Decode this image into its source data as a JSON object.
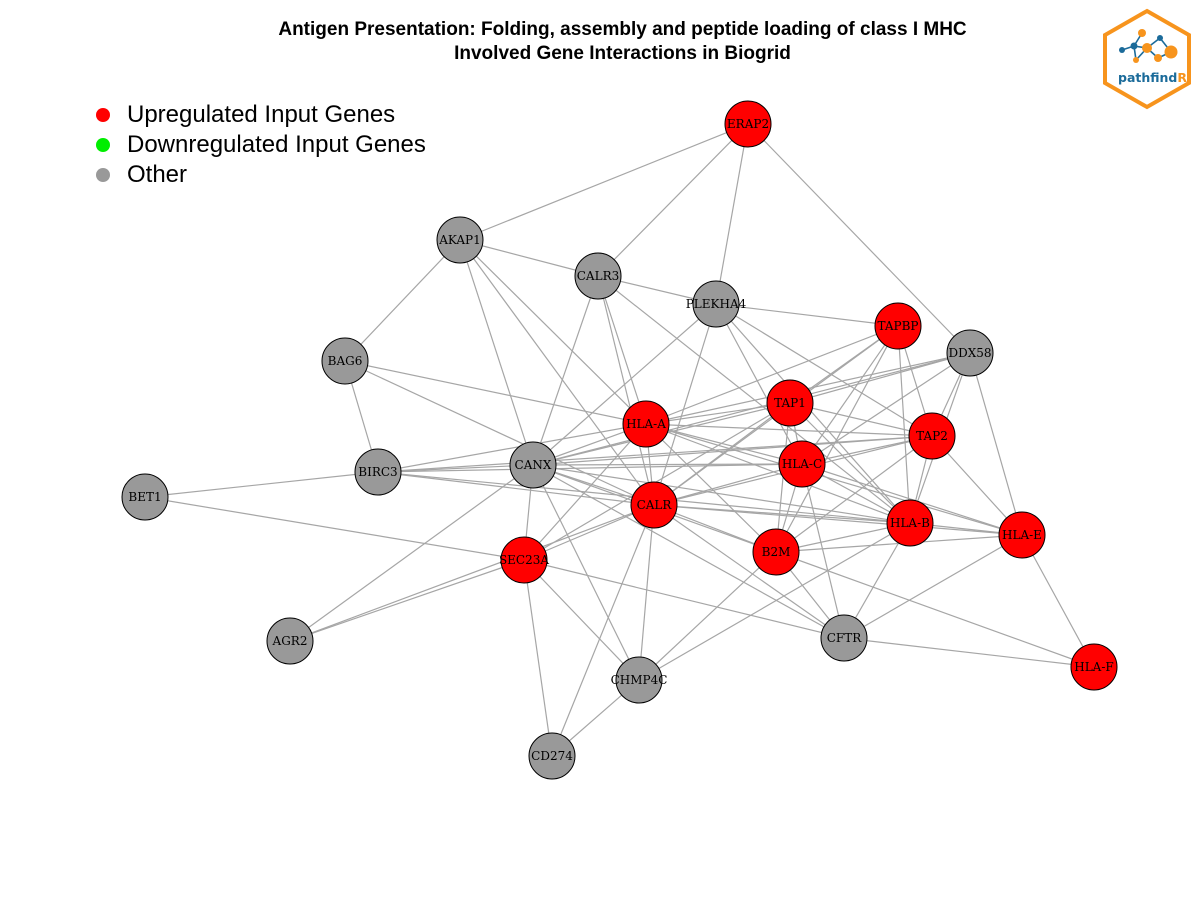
{
  "title": {
    "line1": "Antigen Presentation: Folding, assembly and peptide loading of class I MHC",
    "line2": "Involved Gene Interactions in Biogrid"
  },
  "legend": [
    {
      "label": "Upregulated Input Genes",
      "color": "#ff0000"
    },
    {
      "label": "Downregulated Input Genes",
      "color": "#00ee00"
    },
    {
      "label": "Other",
      "color": "#999999"
    }
  ],
  "logo": {
    "text_main": "pathfind",
    "text_accent": "R"
  },
  "colors": {
    "edge": "#a6a6a6",
    "up": "#ff0000",
    "other": "#999999",
    "logo_orange": "#f7941d",
    "logo_blue": "#1b6b9a"
  },
  "nodes": [
    {
      "id": "ERAP2",
      "status": "up"
    },
    {
      "id": "AKAP1",
      "status": "other"
    },
    {
      "id": "CALR3",
      "status": "other"
    },
    {
      "id": "PLEKHA4",
      "status": "other"
    },
    {
      "id": "TAPBP",
      "status": "up"
    },
    {
      "id": "DDX58",
      "status": "other"
    },
    {
      "id": "BAG6",
      "status": "other"
    },
    {
      "id": "TAP1",
      "status": "up"
    },
    {
      "id": "HLA-A",
      "status": "up"
    },
    {
      "id": "TAP2",
      "status": "up"
    },
    {
      "id": "HLA-C",
      "status": "up"
    },
    {
      "id": "BIRC3",
      "status": "other"
    },
    {
      "id": "CANX",
      "status": "other"
    },
    {
      "id": "BET1",
      "status": "other"
    },
    {
      "id": "CALR",
      "status": "up"
    },
    {
      "id": "HLA-B",
      "status": "up"
    },
    {
      "id": "HLA-E",
      "status": "up"
    },
    {
      "id": "B2M",
      "status": "up"
    },
    {
      "id": "SEC23A",
      "status": "up"
    },
    {
      "id": "AGR2",
      "status": "other"
    },
    {
      "id": "CFTR",
      "status": "other"
    },
    {
      "id": "HLA-F",
      "status": "up"
    },
    {
      "id": "CHMP4C",
      "status": "other"
    },
    {
      "id": "CD274",
      "status": "other"
    }
  ],
  "edges": [
    [
      "ERAP2",
      "AKAP1"
    ],
    [
      "ERAP2",
      "CALR3"
    ],
    [
      "ERAP2",
      "PLEKHA4"
    ],
    [
      "ERAP2",
      "DDX58"
    ],
    [
      "AKAP1",
      "CALR3"
    ],
    [
      "AKAP1",
      "BAG6"
    ],
    [
      "AKAP1",
      "CANX"
    ],
    [
      "AKAP1",
      "CALR"
    ],
    [
      "AKAP1",
      "HLA-A"
    ],
    [
      "CALR3",
      "PLEKHA4"
    ],
    [
      "CALR3",
      "HLA-A"
    ],
    [
      "CALR3",
      "CALR"
    ],
    [
      "CALR3",
      "CANX"
    ],
    [
      "CALR3",
      "HLA-B"
    ],
    [
      "PLEKHA4",
      "TAPBP"
    ],
    [
      "PLEKHA4",
      "TAP2"
    ],
    [
      "PLEKHA4",
      "HLA-C"
    ],
    [
      "PLEKHA4",
      "CALR"
    ],
    [
      "PLEKHA4",
      "HLA-B"
    ],
    [
      "PLEKHA4",
      "CANX"
    ],
    [
      "TAPBP",
      "TAP1"
    ],
    [
      "TAPBP",
      "TAP2"
    ],
    [
      "TAPBP",
      "HLA-A"
    ],
    [
      "TAPBP",
      "HLA-C"
    ],
    [
      "TAPBP",
      "HLA-B"
    ],
    [
      "TAPBP",
      "CALR"
    ],
    [
      "TAPBP",
      "B2M"
    ],
    [
      "DDX58",
      "TAP1"
    ],
    [
      "DDX58",
      "TAP2"
    ],
    [
      "DDX58",
      "HLA-A"
    ],
    [
      "DDX58",
      "HLA-C"
    ],
    [
      "DDX58",
      "HLA-B"
    ],
    [
      "DDX58",
      "HLA-E"
    ],
    [
      "DDX58",
      "CANX"
    ],
    [
      "BAG6",
      "BIRC3"
    ],
    [
      "BAG6",
      "HLA-A"
    ],
    [
      "BAG6",
      "CALR"
    ],
    [
      "TAP1",
      "HLA-A"
    ],
    [
      "TAP1",
      "TAP2"
    ],
    [
      "TAP1",
      "HLA-C"
    ],
    [
      "TAP1",
      "HLA-B"
    ],
    [
      "TAP1",
      "CALR"
    ],
    [
      "TAP1",
      "B2M"
    ],
    [
      "TAP1",
      "CANX"
    ],
    [
      "TAP1",
      "SEC23A"
    ],
    [
      "HLA-A",
      "TAP2"
    ],
    [
      "HLA-A",
      "HLA-C"
    ],
    [
      "HLA-A",
      "HLA-B"
    ],
    [
      "HLA-A",
      "HLA-E"
    ],
    [
      "HLA-A",
      "CANX"
    ],
    [
      "HLA-A",
      "CALR"
    ],
    [
      "HLA-A",
      "B2M"
    ],
    [
      "HLA-A",
      "SEC23A"
    ],
    [
      "HLA-A",
      "BIRC3"
    ],
    [
      "TAP2",
      "HLA-C"
    ],
    [
      "TAP2",
      "HLA-B"
    ],
    [
      "TAP2",
      "HLA-E"
    ],
    [
      "TAP2",
      "CALR"
    ],
    [
      "TAP2",
      "B2M"
    ],
    [
      "TAP2",
      "CANX"
    ],
    [
      "TAP2",
      "BIRC3"
    ],
    [
      "HLA-C",
      "HLA-B"
    ],
    [
      "HLA-C",
      "HLA-E"
    ],
    [
      "HLA-C",
      "CANX"
    ],
    [
      "HLA-C",
      "CALR"
    ],
    [
      "HLA-C",
      "B2M"
    ],
    [
      "HLA-C",
      "BIRC3"
    ],
    [
      "HLA-C",
      "CFTR"
    ],
    [
      "BIRC3",
      "CANX"
    ],
    [
      "BIRC3",
      "BET1"
    ],
    [
      "BIRC3",
      "CALR"
    ],
    [
      "BIRC3",
      "HLA-B"
    ],
    [
      "CANX",
      "CALR"
    ],
    [
      "CANX",
      "HLA-B"
    ],
    [
      "CANX",
      "SEC23A"
    ],
    [
      "CANX",
      "AGR2"
    ],
    [
      "CANX",
      "CHMP4C"
    ],
    [
      "CANX",
      "CFTR"
    ],
    [
      "CANX",
      "B2M"
    ],
    [
      "BET1",
      "SEC23A"
    ],
    [
      "CALR",
      "HLA-B"
    ],
    [
      "CALR",
      "HLA-E"
    ],
    [
      "CALR",
      "B2M"
    ],
    [
      "CALR",
      "SEC23A"
    ],
    [
      "CALR",
      "CHMP4C"
    ],
    [
      "CALR",
      "CFTR"
    ],
    [
      "CALR",
      "CD274"
    ],
    [
      "CALR",
      "AGR2"
    ],
    [
      "HLA-B",
      "HLA-E"
    ],
    [
      "HLA-B",
      "B2M"
    ],
    [
      "HLA-B",
      "CFTR"
    ],
    [
      "HLA-B",
      "CHMP4C"
    ],
    [
      "HLA-E",
      "HLA-F"
    ],
    [
      "HLA-E",
      "B2M"
    ],
    [
      "HLA-E",
      "CFTR"
    ],
    [
      "B2M",
      "HLA-F"
    ],
    [
      "B2M",
      "CFTR"
    ],
    [
      "B2M",
      "CHMP4C"
    ],
    [
      "SEC23A",
      "AGR2"
    ],
    [
      "SEC23A",
      "CFTR"
    ],
    [
      "SEC23A",
      "CHMP4C"
    ],
    [
      "SEC23A",
      "CD274"
    ],
    [
      "CFTR",
      "HLA-F"
    ],
    [
      "CHMP4C",
      "CD274"
    ]
  ]
}
